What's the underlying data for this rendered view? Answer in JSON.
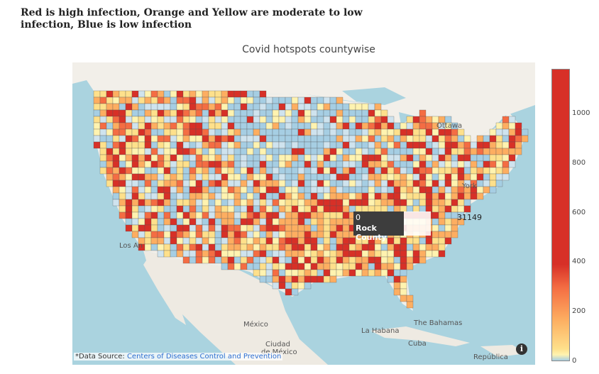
{
  "heading": "Red is high infection, Orange and Yellow are moderate to low infection, Blue is low infection",
  "chart_title": "Covid hotspots countywise",
  "colorbar": {
    "ticks": [
      "0",
      "200",
      "400",
      "600",
      "800",
      "1000"
    ],
    "range": [
      0,
      1180
    ],
    "colors": {
      "low": "#a6cee3",
      "low_mid": "#fee08b",
      "mid": "#fdae61",
      "high": "#d73027"
    }
  },
  "tooltip": {
    "value": "0",
    "county": "Rock County",
    "fips": "31149"
  },
  "places": {
    "ottawa": "Ottawa",
    "york": "York",
    "los_angeles": "Los An",
    "mexico": "México",
    "mexico_city_1": "Ciudad",
    "mexico_city_2": "de México",
    "havana": "La Habana",
    "bahamas": "The Bahamas",
    "cuba": "Cuba",
    "dominican": "República"
  },
  "source": {
    "prefix": "*Data Source: ",
    "link_text": "Centers of Diseases Control and Prevention"
  },
  "info_icon": "i",
  "map_colors": {
    "ocean": "#aad3df",
    "land": "#f2efe9",
    "mexico_land": "#eeeae2"
  }
}
